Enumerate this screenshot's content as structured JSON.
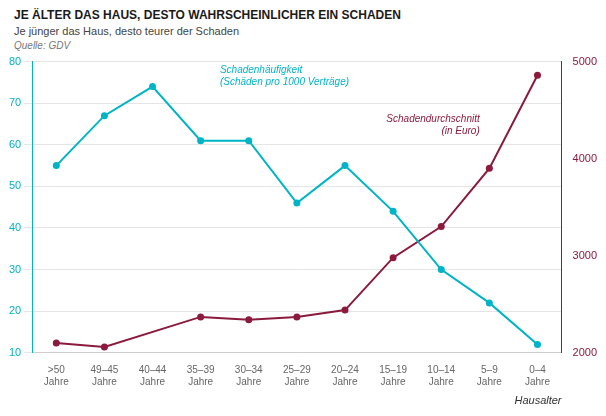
{
  "chart_data": {
    "type": "line",
    "title": "JE ÄLTER DAS HAUS, DESTO WAHRSCHEINLICHER EIN SCHADEN",
    "subtitle": "Je jünger das Haus, desto teurer der Schaden",
    "source": "Quelle: GDV",
    "xlabel": "Hausalter",
    "categories": [
      ">50\nJahre",
      "49–45\nJahre",
      "40–44\nJahre",
      "35–39\nJahre",
      "30–34\nJahre",
      "25–29\nJahre",
      "20–24\nJahre",
      "15–19\nJahre",
      "10–14\nJahre",
      "5–9\nJahre",
      "0–4\nJahre"
    ],
    "series": [
      {
        "color": "#00b4c8",
        "marker": "circle",
        "values": [
          55,
          67,
          74,
          61,
          61,
          46,
          55,
          44,
          30,
          22,
          12
        ]
      },
      {
        "color": "#8b1a3c",
        "marker": "circle",
        "axis": "y2",
        "x": [
          ">50\nJahre",
          "49–45\nJahre",
          "35–39\nJahre",
          "30–34\nJahre",
          "25–29\nJahre",
          "20–24\nJahre",
          "15–19\nJahre",
          "10–14\nJahre",
          "5–9\nJahre",
          "0–4\nJahre"
        ],
        "values": [
          2100,
          2060,
          2370,
          2340,
          2370,
          2440,
          2980,
          3300,
          3900,
          4860
        ]
      }
    ],
    "ylim": [
      10,
      80
    ],
    "yticks": [
      10,
      20,
      30,
      40,
      50,
      60,
      70,
      80
    ],
    "y2lim": [
      2000,
      5000
    ],
    "y2ticks": [
      2000,
      3000,
      4000,
      5000
    ],
    "grid": true,
    "annotations": [
      {
        "text": "Schadenhäufigkeit\n(Schäden pro 1000 Verträge)",
        "color": "#00b4c8",
        "axis": "y"
      },
      {
        "text": "Schadendurchschnitt\n(in Euro)",
        "color": "#8b1a3c",
        "axis": "y2"
      }
    ]
  }
}
